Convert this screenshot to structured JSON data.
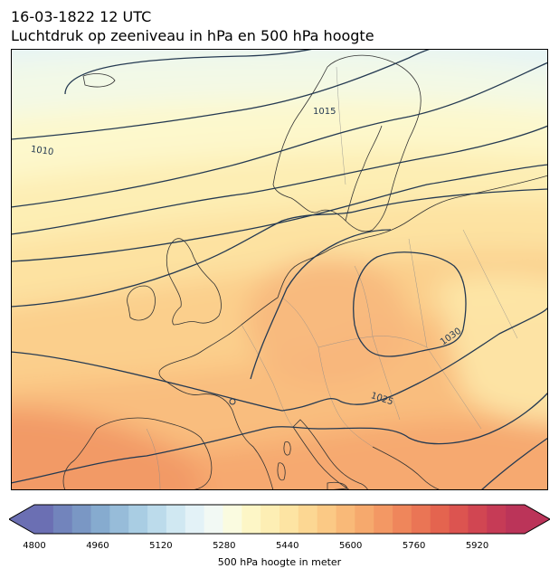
{
  "header": {
    "timestamp": "16-03-1822 12 UTC",
    "subtitle": "Luchtdruk op zeeniveau in hPa en 500 hPa hoogte"
  },
  "map": {
    "isobar_labels": [
      {
        "text": "1010"
      },
      {
        "text": "1015"
      },
      {
        "text": "1030"
      },
      {
        "text": "1025"
      }
    ]
  },
  "colorbar": {
    "label": "500 hPa hoogte in meter",
    "ticks": [
      "4800",
      "4960",
      "5120",
      "5280",
      "5440",
      "5600",
      "5760",
      "5920"
    ],
    "colors": [
      "#6b6fb3",
      "#7284bc",
      "#7a97c4",
      "#86abcf",
      "#97bcd9",
      "#a9cde3",
      "#bcdbeb",
      "#d0e8f2",
      "#e3f2f7",
      "#f2f9f4",
      "#fafbe0",
      "#fdf6c6",
      "#fdeeb4",
      "#fde4a3",
      "#fcd793",
      "#fbc985",
      "#f9b978",
      "#f6a96d",
      "#f39864",
      "#ef865b",
      "#ea7555",
      "#e4644f",
      "#dc5450",
      "#d14652",
      "#c63b56",
      "#bb3459"
    ]
  },
  "legend_colors": {
    "coastline": "#333333",
    "isobar": "#253a52",
    "border": "#8a8a8a"
  }
}
